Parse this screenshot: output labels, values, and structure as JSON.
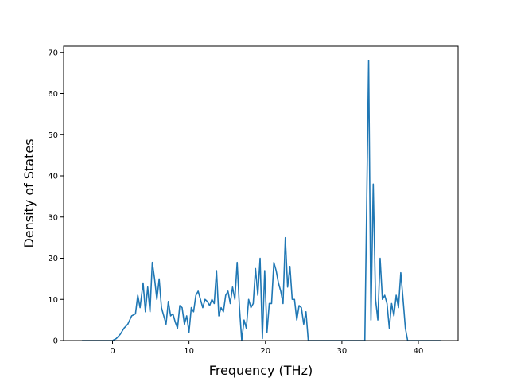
{
  "chart_data": {
    "type": "line",
    "title": "",
    "xlabel": "Frequency (THz)",
    "ylabel": "Density of States",
    "xlim": [
      -6.4,
      45.2
    ],
    "ylim": [
      0,
      71.5
    ],
    "xticks": [
      0,
      10,
      20,
      30,
      40
    ],
    "yticks": [
      0,
      10,
      20,
      30,
      40,
      50,
      60,
      70
    ],
    "grid": false,
    "legend": "none",
    "line_color": "#1f77b4",
    "series": [
      {
        "x": [
          -4,
          -3,
          -2,
          -1,
          0,
          0.5,
          1,
          1.5,
          2,
          2.5,
          3,
          3.3,
          3.6,
          4,
          4.3,
          4.6,
          4.9,
          5.2,
          5.5,
          5.8,
          6.1,
          6.4,
          6.7,
          7,
          7.3,
          7.6,
          7.9,
          8.2,
          8.5,
          8.8,
          9.1,
          9.4,
          9.7,
          10,
          10.3,
          10.6,
          10.9,
          11.2,
          11.5,
          11.8,
          12.1,
          12.4,
          12.7,
          13,
          13.3,
          13.6,
          13.9,
          14.2,
          14.5,
          14.8,
          15.1,
          15.4,
          15.7,
          16,
          16.3,
          16.6,
          16.9,
          17.2,
          17.5,
          17.8,
          18.1,
          18.4,
          18.7,
          19,
          19.3,
          19.6,
          19.9,
          20.2,
          20.5,
          20.8,
          21.1,
          21.4,
          21.7,
          22,
          22.3,
          22.6,
          22.9,
          23.2,
          23.5,
          23.8,
          24.1,
          24.4,
          24.7,
          25,
          25.3,
          25.6,
          25.9,
          26.2,
          26.5,
          27,
          29,
          31,
          33,
          33.5,
          33.8,
          34.1,
          34.4,
          34.7,
          35,
          35.3,
          35.6,
          35.9,
          36.2,
          36.5,
          36.8,
          37.1,
          37.4,
          37.7,
          38,
          38.3,
          38.6,
          38.9,
          39.2,
          40,
          42,
          43
        ],
        "y": [
          0,
          0,
          0,
          0,
          0,
          0.5,
          1.5,
          3,
          4,
          6,
          6.5,
          11,
          8,
          14,
          7,
          13,
          7,
          19,
          15,
          10,
          15,
          8,
          6,
          4,
          9.5,
          6,
          6.5,
          4.5,
          3,
          8.5,
          8,
          4,
          6,
          2,
          8,
          7,
          11,
          12,
          10,
          8,
          10,
          9.5,
          8.5,
          10,
          9,
          17,
          6,
          8,
          7,
          11,
          12,
          9,
          13,
          10,
          19,
          8,
          0,
          5,
          3,
          10,
          8,
          9,
          17.5,
          11,
          20,
          0.5,
          17,
          2,
          9,
          9,
          19,
          17,
          14,
          12,
          9,
          25,
          13,
          18,
          10,
          10,
          5,
          8.5,
          8,
          4,
          7,
          0,
          0,
          0,
          0,
          0,
          0,
          0,
          0,
          68,
          5,
          38,
          10,
          5,
          20,
          10,
          11,
          9,
          3,
          9,
          6,
          11,
          8,
          16.5,
          10,
          3,
          0,
          0,
          0,
          0,
          0,
          0
        ]
      }
    ]
  }
}
